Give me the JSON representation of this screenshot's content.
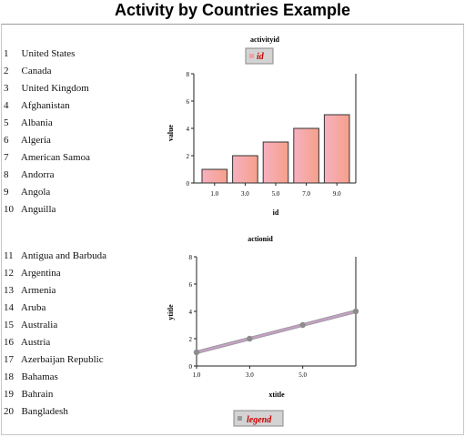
{
  "page": {
    "title": "Activity by Countries Example"
  },
  "countries_group_1": [
    {
      "num": "1",
      "name": "United States"
    },
    {
      "num": "2",
      "name": "Canada"
    },
    {
      "num": "3",
      "name": "United Kingdom"
    },
    {
      "num": "4",
      "name": "Afghanistan"
    },
    {
      "num": "5",
      "name": "Albania"
    },
    {
      "num": "6",
      "name": "Algeria"
    },
    {
      "num": "7",
      "name": "American Samoa"
    },
    {
      "num": "8",
      "name": "Andorra"
    },
    {
      "num": "9",
      "name": "Angola"
    },
    {
      "num": "10",
      "name": "Anguilla"
    }
  ],
  "countries_group_2": [
    {
      "num": "11",
      "name": "Antigua and Barbuda"
    },
    {
      "num": "12",
      "name": "Argentina"
    },
    {
      "num": "13",
      "name": "Armenia"
    },
    {
      "num": "14",
      "name": "Aruba"
    },
    {
      "num": "15",
      "name": "Australia"
    },
    {
      "num": "16",
      "name": "Austria"
    },
    {
      "num": "17",
      "name": "Azerbaijan Republic"
    },
    {
      "num": "18",
      "name": "Bahamas"
    },
    {
      "num": "19",
      "name": "Bahrain"
    },
    {
      "num": "20",
      "name": "Bangladesh"
    }
  ],
  "chart_data": [
    {
      "type": "bar",
      "title": "activityid",
      "legend": "id",
      "legend_position": "top",
      "xlabel": "id",
      "ylabel": "value",
      "categories": [
        "1.0",
        "3.0",
        "5.0",
        "7.0",
        "9.0"
      ],
      "values": [
        1,
        2,
        3,
        4,
        5
      ],
      "ylim": [
        0,
        8
      ],
      "yticks": [
        "0",
        "2",
        "4",
        "6",
        "8"
      ],
      "grid": false,
      "bar_color": "#f2a0a0",
      "legend_text_color": "#cc0000"
    },
    {
      "type": "line",
      "title": "actionid",
      "legend": "legend",
      "legend_position": "bottom",
      "xlabel": "xtitle",
      "ylabel": "ytitle",
      "x": [
        1,
        3,
        5,
        7
      ],
      "y": [
        1,
        2,
        3,
        4
      ],
      "xlim": [
        1,
        7
      ],
      "ylim": [
        0,
        8
      ],
      "xticks": [
        "1.0",
        "3.0",
        "5.0"
      ],
      "yticks": [
        "0",
        "2",
        "4",
        "6",
        "8"
      ],
      "grid": false,
      "line_color": "#b89ab8",
      "marker_color": "#9a9a9a",
      "legend_text_color": "#cc0000"
    }
  ]
}
